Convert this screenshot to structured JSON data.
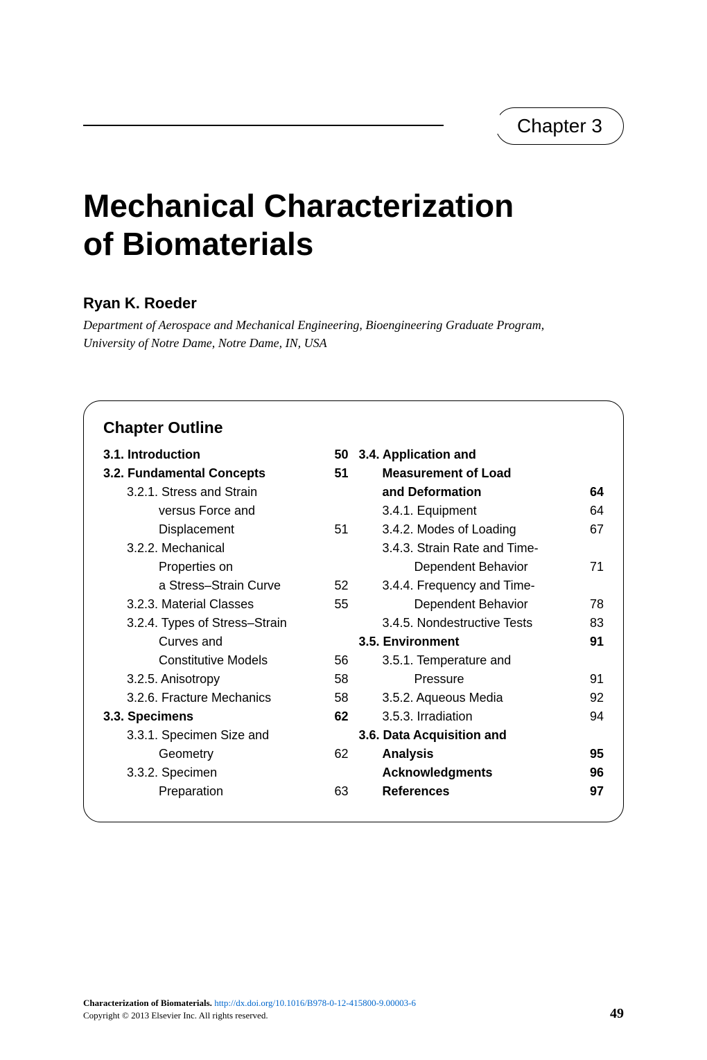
{
  "chapter_label": "Chapter 3",
  "title_line1": "Mechanical Characterization",
  "title_line2": "of Biomaterials",
  "author": "Ryan K. Roeder",
  "affiliation_line1": "Department of Aerospace and Mechanical Engineering, Bioengineering Graduate Program,",
  "affiliation_line2": "University of Notre Dame, Notre Dame, IN, USA",
  "outline_heading": "Chapter Outline",
  "outline": {
    "left": [
      {
        "label": "3.1. Introduction",
        "page": "50",
        "bold": true,
        "indent": 0
      },
      {
        "label": "3.2. Fundamental Concepts",
        "page": "51",
        "bold": true,
        "indent": 0
      },
      {
        "label": "3.2.1. Stress and Strain",
        "page": "",
        "bold": false,
        "indent": 1
      },
      {
        "label": "versus Force and",
        "page": "",
        "bold": false,
        "indent": 2
      },
      {
        "label": "Displacement",
        "page": "51",
        "bold": false,
        "indent": 2
      },
      {
        "label": "3.2.2. Mechanical",
        "page": "",
        "bold": false,
        "indent": 1
      },
      {
        "label": "Properties on",
        "page": "",
        "bold": false,
        "indent": 2
      },
      {
        "label": "a Stress–Strain Curve",
        "page": "52",
        "bold": false,
        "indent": 2
      },
      {
        "label": "3.2.3. Material Classes",
        "page": "55",
        "bold": false,
        "indent": 1
      },
      {
        "label": "3.2.4. Types of Stress–Strain",
        "page": "",
        "bold": false,
        "indent": 1
      },
      {
        "label": "Curves and",
        "page": "",
        "bold": false,
        "indent": 2
      },
      {
        "label": "Constitutive Models",
        "page": "56",
        "bold": false,
        "indent": 2
      },
      {
        "label": "3.2.5. Anisotropy",
        "page": "58",
        "bold": false,
        "indent": 1
      },
      {
        "label": "3.2.6. Fracture Mechanics",
        "page": "58",
        "bold": false,
        "indent": 1
      },
      {
        "label": "3.3. Specimens",
        "page": "62",
        "bold": true,
        "indent": 0
      },
      {
        "label": "3.3.1. Specimen Size and",
        "page": "",
        "bold": false,
        "indent": 1
      },
      {
        "label": "Geometry",
        "page": "62",
        "bold": false,
        "indent": 2
      },
      {
        "label": "3.3.2. Specimen",
        "page": "",
        "bold": false,
        "indent": 1
      },
      {
        "label": "Preparation",
        "page": "63",
        "bold": false,
        "indent": 2
      }
    ],
    "right": [
      {
        "label": "3.4. Application and",
        "page": "",
        "bold": true,
        "indent": 0
      },
      {
        "label": "Measurement of Load",
        "page": "",
        "bold": true,
        "indent": 1
      },
      {
        "label": "and Deformation",
        "page": "64",
        "bold": true,
        "indent": 1
      },
      {
        "label": "3.4.1. Equipment",
        "page": "64",
        "bold": false,
        "indent": 1
      },
      {
        "label": "3.4.2. Modes of Loading",
        "page": "67",
        "bold": false,
        "indent": 1
      },
      {
        "label": "3.4.3. Strain Rate and Time-",
        "page": "",
        "bold": false,
        "indent": 1
      },
      {
        "label": "Dependent Behavior",
        "page": "71",
        "bold": false,
        "indent": 2
      },
      {
        "label": "3.4.4. Frequency and Time-",
        "page": "",
        "bold": false,
        "indent": 1
      },
      {
        "label": "Dependent Behavior",
        "page": "78",
        "bold": false,
        "indent": 2
      },
      {
        "label": "3.4.5. Nondestructive Tests",
        "page": "83",
        "bold": false,
        "indent": 1
      },
      {
        "label": "3.5. Environment",
        "page": "91",
        "bold": true,
        "indent": 0
      },
      {
        "label": "3.5.1. Temperature and",
        "page": "",
        "bold": false,
        "indent": 1
      },
      {
        "label": "Pressure",
        "page": "91",
        "bold": false,
        "indent": 2
      },
      {
        "label": "3.5.2. Aqueous Media",
        "page": "92",
        "bold": false,
        "indent": 1
      },
      {
        "label": "3.5.3. Irradiation",
        "page": "94",
        "bold": false,
        "indent": 1
      },
      {
        "label": "3.6. Data Acquisition and",
        "page": "",
        "bold": true,
        "indent": 0
      },
      {
        "label": "Analysis",
        "page": "95",
        "bold": true,
        "indent": 1
      },
      {
        "label": "Acknowledgments",
        "page": "96",
        "bold": true,
        "indent": 1
      },
      {
        "label": "References",
        "page": "97",
        "bold": true,
        "indent": 1
      }
    ]
  },
  "footer_title": "Characterization of Biomaterials.",
  "footer_link": "http://dx.doi.org/10.1016/B978-0-12-415800-9.00003-6",
  "footer_copyright": "Copyright © 2013 Elsevier Inc. All rights reserved.",
  "page_number": "49"
}
